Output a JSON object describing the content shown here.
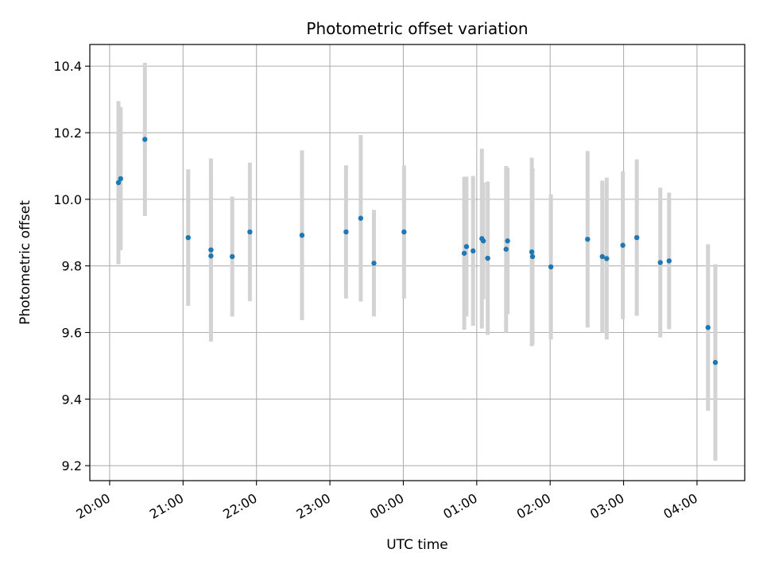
{
  "chart_data": {
    "type": "scatter",
    "title": "Photometric offset variation",
    "xlabel": "UTC time",
    "ylabel": "Photometric offset",
    "x_axis_kind": "time",
    "x_tick_labels": [
      "20:00",
      "21:00",
      "22:00",
      "23:00",
      "00:00",
      "01:00",
      "02:00",
      "03:00",
      "04:00"
    ],
    "x_tick_values_hours": [
      0,
      1,
      2,
      3,
      4,
      5,
      6,
      7,
      8
    ],
    "xlim_hours": [
      -0.27,
      8.65
    ],
    "y_ticks": [
      9.2,
      9.4,
      9.6,
      9.8,
      10.0,
      10.2,
      10.4
    ],
    "ylim": [
      9.155,
      10.465
    ],
    "grid": true,
    "colors": {
      "points": "#1f77b4",
      "errorbars": "#d3d3d3",
      "grid": "#b0b0b0"
    },
    "points": [
      {
        "x": 0.12,
        "y": 10.05,
        "err": 0.245
      },
      {
        "x": 0.15,
        "y": 10.062,
        "err": 0.215
      },
      {
        "x": 0.48,
        "y": 10.18,
        "err": 0.23
      },
      {
        "x": 1.07,
        "y": 9.885,
        "err": 0.205
      },
      {
        "x": 1.38,
        "y": 9.848,
        "err": 0.275
      },
      {
        "x": 1.38,
        "y": 9.83,
        "err": 0.23
      },
      {
        "x": 1.67,
        "y": 9.828,
        "err": 0.18
      },
      {
        "x": 1.91,
        "y": 9.902,
        "err": 0.208
      },
      {
        "x": 2.62,
        "y": 9.892,
        "err": 0.255
      },
      {
        "x": 3.22,
        "y": 9.902,
        "err": 0.2
      },
      {
        "x": 3.42,
        "y": 9.943,
        "err": 0.25
      },
      {
        "x": 3.6,
        "y": 9.808,
        "err": 0.16
      },
      {
        "x": 4.01,
        "y": 9.902,
        "err": 0.2
      },
      {
        "x": 4.83,
        "y": 9.838,
        "err": 0.23
      },
      {
        "x": 4.86,
        "y": 9.858,
        "err": 0.21
      },
      {
        "x": 4.95,
        "y": 9.845,
        "err": 0.225
      },
      {
        "x": 5.07,
        "y": 9.882,
        "err": 0.27
      },
      {
        "x": 5.09,
        "y": 9.875,
        "err": 0.175
      },
      {
        "x": 5.15,
        "y": 9.823,
        "err": 0.23
      },
      {
        "x": 5.4,
        "y": 9.85,
        "err": 0.25
      },
      {
        "x": 5.42,
        "y": 9.875,
        "err": 0.22
      },
      {
        "x": 5.75,
        "y": 9.842,
        "err": 0.283
      },
      {
        "x": 5.76,
        "y": 9.828,
        "err": 0.265
      },
      {
        "x": 6.01,
        "y": 9.797,
        "err": 0.218
      },
      {
        "x": 6.51,
        "y": 9.88,
        "err": 0.265
      },
      {
        "x": 6.71,
        "y": 9.828,
        "err": 0.228
      },
      {
        "x": 6.77,
        "y": 9.822,
        "err": 0.243
      },
      {
        "x": 6.99,
        "y": 9.862,
        "err": 0.222
      },
      {
        "x": 7.18,
        "y": 9.885,
        "err": 0.235
      },
      {
        "x": 7.5,
        "y": 9.81,
        "err": 0.225
      },
      {
        "x": 7.62,
        "y": 9.815,
        "err": 0.205
      },
      {
        "x": 8.15,
        "y": 9.615,
        "err": 0.25
      },
      {
        "x": 8.25,
        "y": 9.51,
        "err": 0.295
      }
    ]
  }
}
